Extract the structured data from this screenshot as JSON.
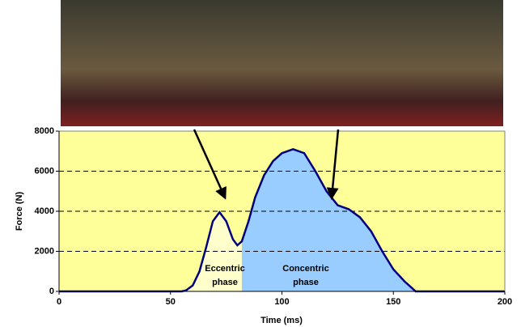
{
  "chart_data": {
    "type": "area",
    "x_label": "Time (ms)",
    "y_label": "Force (N)",
    "x": [
      0,
      55,
      57,
      60,
      63,
      66,
      69,
      72,
      75,
      78,
      80,
      82,
      85,
      88,
      92,
      96,
      100,
      105,
      110,
      115,
      120,
      125,
      130,
      135,
      140,
      145,
      150,
      155,
      160,
      200
    ],
    "values": [
      0,
      0,
      50,
      300,
      1000,
      2200,
      3500,
      3950,
      3500,
      2600,
      2300,
      2500,
      3500,
      4700,
      5800,
      6500,
      6900,
      7100,
      6900,
      6000,
      5000,
      4300,
      4100,
      3700,
      3000,
      2000,
      1100,
      500,
      0,
      0
    ],
    "color": "#000080",
    "phases": [
      {
        "label": [
          "Eccentric",
          "phase"
        ],
        "start": 55,
        "end": 82,
        "color": "#ffffcc"
      },
      {
        "label": [
          "Concentric",
          "phase"
        ],
        "start": 82,
        "end": 160,
        "color": "#99ccff"
      }
    ],
    "background": "#ffff99",
    "xlim": [
      0,
      200
    ],
    "xticks": [
      0,
      50,
      100,
      150,
      200
    ],
    "ylim": [
      0,
      8000
    ],
    "yticks": [
      0,
      2000,
      4000,
      6000,
      8000
    ],
    "grid": true
  }
}
